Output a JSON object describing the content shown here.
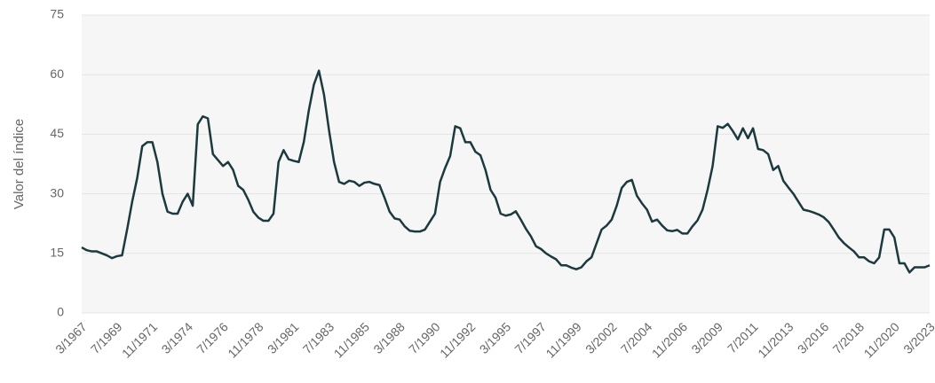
{
  "chart_data": {
    "type": "line",
    "ylabel": "Valor del índice",
    "categories": [
      "3/1967",
      null,
      null,
      null,
      null,
      null,
      null,
      "7/1969",
      null,
      null,
      null,
      null,
      null,
      null,
      "11/1971",
      null,
      null,
      null,
      null,
      null,
      null,
      "3/1974",
      null,
      null,
      null,
      null,
      null,
      null,
      "7/1976",
      null,
      null,
      null,
      null,
      null,
      null,
      "11/1978",
      null,
      null,
      null,
      null,
      null,
      null,
      "3/1981",
      null,
      null,
      null,
      null,
      null,
      null,
      "7/1983",
      null,
      null,
      null,
      null,
      null,
      null,
      "11/1985",
      null,
      null,
      null,
      null,
      null,
      null,
      "3/1988",
      null,
      null,
      null,
      null,
      null,
      null,
      "7/1990",
      null,
      null,
      null,
      null,
      null,
      null,
      "11/1992",
      null,
      null,
      null,
      null,
      null,
      null,
      "3/1995",
      null,
      null,
      null,
      null,
      null,
      null,
      "7/1997",
      null,
      null,
      null,
      null,
      null,
      null,
      "11/1999",
      null,
      null,
      null,
      null,
      null,
      null,
      "3/2002",
      null,
      null,
      null,
      null,
      null,
      null,
      "7/2004",
      null,
      null,
      null,
      null,
      null,
      null,
      "11/2006",
      null,
      null,
      null,
      null,
      null,
      null,
      "3/2009",
      null,
      null,
      null,
      null,
      null,
      null,
      "7/2011",
      null,
      null,
      null,
      null,
      null,
      null,
      "11/2013",
      null,
      null,
      null,
      null,
      null,
      null,
      "3/2016",
      null,
      null,
      null,
      null,
      null,
      null,
      "7/2018",
      null,
      null,
      null,
      null,
      null,
      null,
      "11/2020",
      null,
      null,
      null,
      null,
      null,
      null,
      "3/2023"
    ],
    "series": [
      {
        "color": "#1c3a3e",
        "values": [
          16.5,
          15.8,
          15.5,
          15.5,
          15,
          14.5,
          13.8,
          14.3,
          14.5,
          21,
          28,
          34,
          42,
          43,
          43,
          38,
          30,
          25.5,
          25,
          25,
          28,
          30,
          27,
          47.5,
          49.5,
          49,
          40,
          38.5,
          37,
          38,
          36,
          32,
          31,
          28.5,
          25.5,
          24,
          23.2,
          23.2,
          25,
          38,
          41,
          38.7,
          38.3,
          38,
          43,
          51,
          57.5,
          61,
          55,
          46,
          38,
          33,
          32.5,
          33.3,
          33,
          32,
          32.8,
          33,
          32.5,
          32.2,
          29,
          25.5,
          23.8,
          23.5,
          21.8,
          20.7,
          20.5,
          20.5,
          21,
          23,
          25,
          33,
          36.5,
          39.5,
          47,
          46.5,
          43,
          43,
          40.6,
          39.7,
          36,
          31,
          29,
          25,
          24.5,
          24.8,
          25.6,
          23.5,
          21.2,
          19.3,
          16.8,
          16.1,
          15,
          14.2,
          13.5,
          12,
          12,
          11.4,
          11,
          11.5,
          13,
          14,
          17.5,
          21,
          22,
          23.5,
          27,
          31.5,
          33,
          33.5,
          29.5,
          27.6,
          26,
          23,
          23.5,
          22,
          20.8,
          20.6,
          20.9,
          20,
          20,
          21.8,
          23.3,
          26,
          31,
          37,
          47,
          46.6,
          47.6,
          45.8,
          43.7,
          46.5,
          44,
          46.5,
          41.3,
          41,
          40,
          36,
          37,
          33.3,
          31.6,
          30,
          28,
          26,
          25.7,
          25.3,
          24.8,
          24.1,
          22.9,
          21,
          19,
          17.6,
          16.5,
          15.5,
          14,
          14,
          13,
          12.5,
          14,
          21,
          21,
          19,
          12.5,
          12.5,
          10.2,
          11.5,
          11.5,
          11.5,
          12
        ]
      }
    ],
    "ylim": [
      0,
      75
    ],
    "yticks": [
      0,
      15,
      30,
      45,
      60,
      75
    ],
    "grid": true
  }
}
